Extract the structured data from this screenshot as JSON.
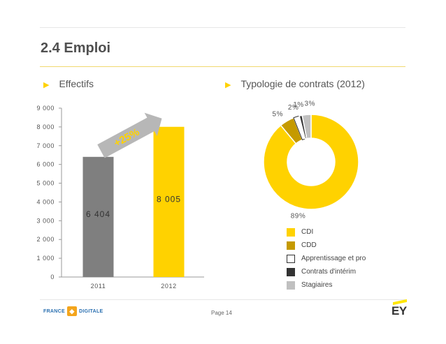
{
  "slide": {
    "title": "2.4 Emploi",
    "left_section": "Effectifs",
    "right_section": "Typologie de contrats (2012)",
    "page": "Page 14"
  },
  "logos": {
    "left_part1": "FRANCE",
    "left_part2": "DIGITALE",
    "right": "EY"
  },
  "colors": {
    "accent": "#ffd200",
    "bar_2011": "#7f7f7f",
    "bar_2012": "#ffd200"
  },
  "chart_data": [
    {
      "type": "bar",
      "title": "Effectifs",
      "categories": [
        "2011",
        "2012"
      ],
      "values": [
        6404,
        8005
      ],
      "value_labels": [
        "6 404",
        "8 005"
      ],
      "colors": [
        "#7f7f7f",
        "#ffd200"
      ],
      "ylim": [
        0,
        9000
      ],
      "yticks": [
        0,
        1000,
        2000,
        3000,
        4000,
        5000,
        6000,
        7000,
        8000,
        9000
      ],
      "ytick_labels": [
        "0",
        "1 000",
        "2 000",
        "3 000",
        "4 000",
        "5 000",
        "6 000",
        "7 000",
        "8 000",
        "9 000"
      ],
      "annotation": "+25%"
    },
    {
      "type": "pie",
      "subtype": "donut",
      "title": "Typologie de contrats (2012)",
      "slices": [
        {
          "name": "CDI",
          "value": 89,
          "label": "89%",
          "color": "#ffd200"
        },
        {
          "name": "CDD",
          "value": 5,
          "label": "5%",
          "color": "#c59a00"
        },
        {
          "name": "Apprentissage et pro",
          "value": 2,
          "label": "2%",
          "color": "#ffffff"
        },
        {
          "name": "Contrats d'intérim",
          "value": 1,
          "label": "1%",
          "color": "#333333"
        },
        {
          "name": "Stagiaires",
          "value": 3,
          "label": "3%",
          "color": "#c0c0c0"
        }
      ],
      "legend": [
        "CDI",
        "CDD",
        "Apprentissage et pro",
        "Contrats d'intérim",
        "Stagiaires"
      ],
      "legend_position": "bottom"
    }
  ]
}
